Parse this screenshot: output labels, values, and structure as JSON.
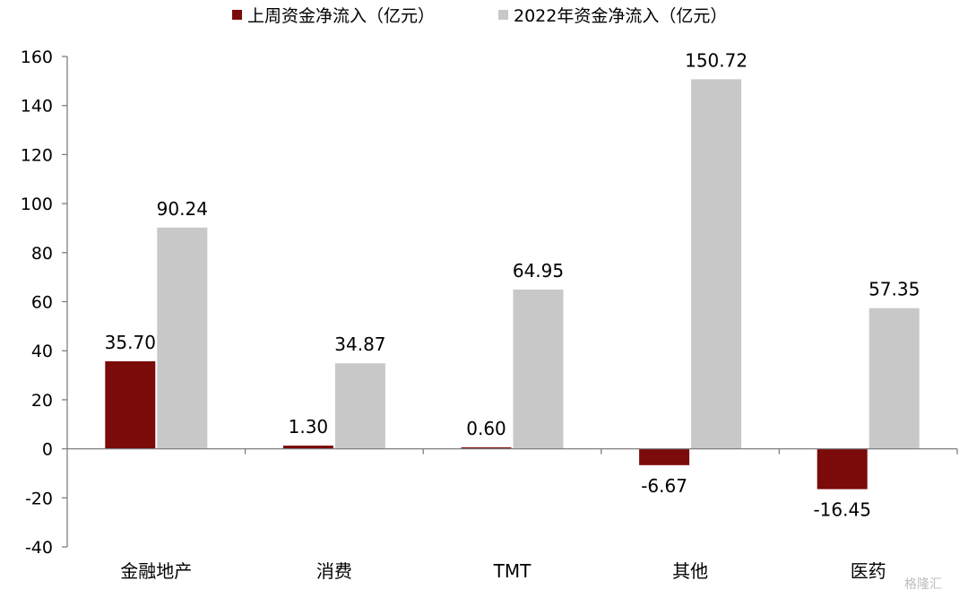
{
  "chart_data": {
    "type": "bar",
    "categories": [
      "金融地产",
      "消费",
      "TMT",
      "其他",
      "医药"
    ],
    "series": [
      {
        "name": "上周资金净流入（亿元）",
        "color": "#7b0a0a",
        "values": [
          35.7,
          1.3,
          0.6,
          -6.67,
          -16.45
        ],
        "labels": [
          "35.70",
          "1.30",
          "0.60",
          "-6.67",
          "-16.45"
        ]
      },
      {
        "name": "2022年资金净流入（亿元）",
        "color": "#c8c8c8",
        "values": [
          90.24,
          34.87,
          64.95,
          150.72,
          57.35
        ],
        "labels": [
          "90.24",
          "34.87",
          "64.95",
          "150.72",
          "57.35"
        ]
      }
    ],
    "yticks": [
      160,
      140,
      120,
      100,
      80,
      60,
      40,
      20,
      0,
      -20,
      -40
    ],
    "ylim": [
      -40,
      160
    ],
    "grid": false,
    "legend": "top-center"
  },
  "watermark": "格隆汇"
}
